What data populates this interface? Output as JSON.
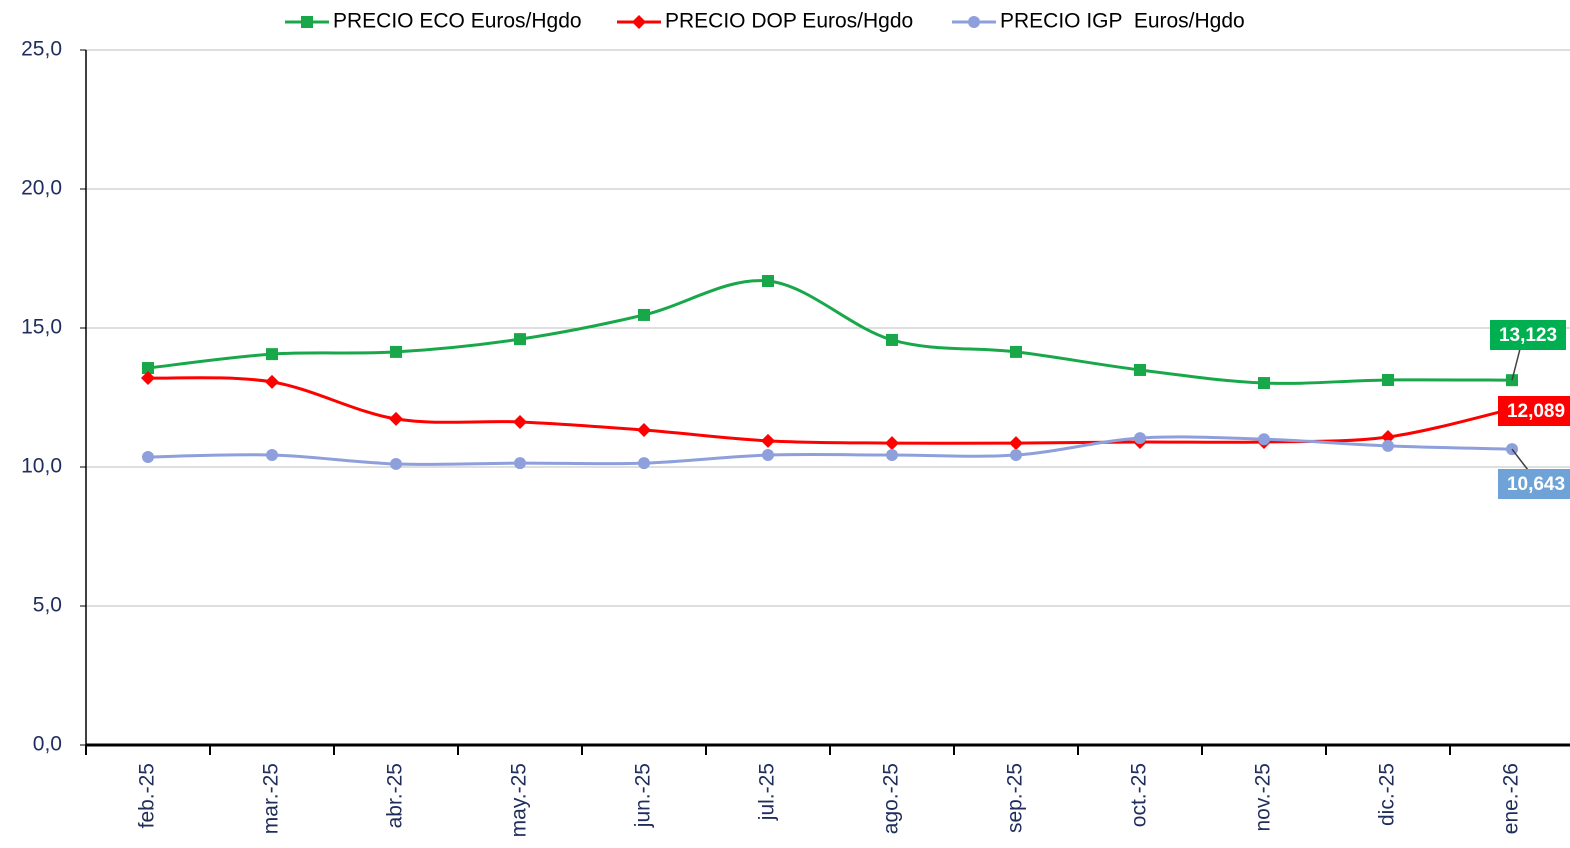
{
  "chart_data": {
    "type": "line",
    "categories": [
      "feb.-25",
      "mar.-25",
      "abr.-25",
      "may.-25",
      "jun.-25",
      "jul.-25",
      "ago.-25",
      "sep.-25",
      "oct.-25",
      "nov.-25",
      "dic.-25",
      "ene.-26"
    ],
    "series": [
      {
        "name": "PRECIO ECO Euros/Hgdo",
        "color": "#18a84a",
        "marker": "square",
        "values": [
          13.56,
          14.06,
          14.14,
          14.6,
          15.47,
          16.69,
          14.57,
          14.14,
          13.49,
          13.02,
          13.13,
          13.123
        ],
        "value_labels": [
          null,
          null,
          null,
          null,
          null,
          null,
          null,
          null,
          null,
          null,
          null,
          "13,123"
        ]
      },
      {
        "name": "PRECIO DOP Euros/Hgdo",
        "color": "#ff0000",
        "marker": "diamond",
        "values": [
          13.2,
          13.06,
          11.73,
          11.62,
          11.33,
          10.94,
          10.86,
          10.86,
          10.9,
          10.9,
          11.08,
          12.089
        ],
        "value_labels": [
          null,
          null,
          null,
          null,
          null,
          null,
          null,
          null,
          null,
          null,
          null,
          "12,089"
        ]
      },
      {
        "name": "PRECIO IGP  Euros/Hgdo",
        "color": "#8ea0db",
        "marker": "circle",
        "values": [
          10.36,
          10.43,
          10.11,
          10.14,
          10.14,
          10.43,
          10.43,
          10.43,
          11.04,
          11.0,
          10.76,
          10.643
        ],
        "value_labels": [
          null,
          null,
          null,
          null,
          null,
          null,
          null,
          null,
          null,
          null,
          null,
          "10,643"
        ]
      }
    ],
    "ylim": [
      0,
      25
    ],
    "yticks": [
      {
        "value": 0,
        "label": "0,0"
      },
      {
        "value": 5,
        "label": "5,0"
      },
      {
        "value": 10,
        "label": "10,0"
      },
      {
        "value": 15,
        "label": "15,0"
      },
      {
        "value": 20,
        "label": "20,0"
      },
      {
        "value": 25,
        "label": "25,0"
      }
    ],
    "grid": true,
    "smooth": true,
    "legend": "top"
  }
}
